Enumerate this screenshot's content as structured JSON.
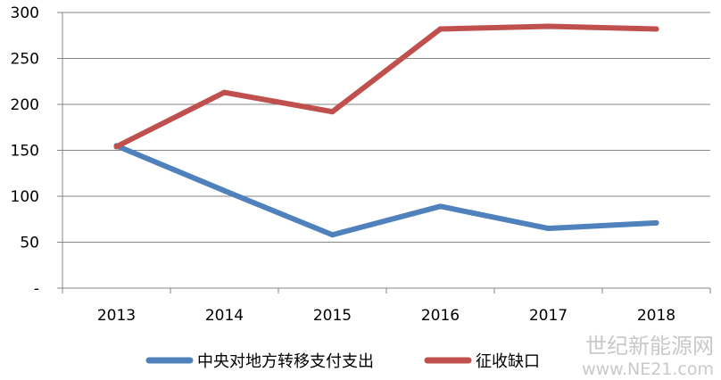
{
  "chart_data": {
    "type": "line",
    "categories": [
      "2013",
      "2014",
      "2015",
      "2016",
      "2017",
      "2018"
    ],
    "ylim": [
      0,
      300
    ],
    "yticks": [
      {
        "value": 300,
        "label": "300"
      },
      {
        "value": 250,
        "label": "250"
      },
      {
        "value": 200,
        "label": "200"
      },
      {
        "value": 150,
        "label": "150"
      },
      {
        "value": 100,
        "label": "100"
      },
      {
        "value": 50,
        "label": "50"
      },
      {
        "value": 0,
        "label": "-"
      }
    ],
    "grid": true,
    "legend_position": "bottom",
    "series": [
      {
        "name": "中央对地方转移支付支出",
        "color": "#4f81bd",
        "values": [
          155,
          106,
          58,
          89,
          65,
          71
        ]
      },
      {
        "name": "征收缺口",
        "color": "#c0504d",
        "values": [
          154,
          213,
          192,
          282,
          285,
          282
        ]
      }
    ]
  },
  "watermark": {
    "line1": "世纪新能源网",
    "line2": "www.NE21.com"
  }
}
